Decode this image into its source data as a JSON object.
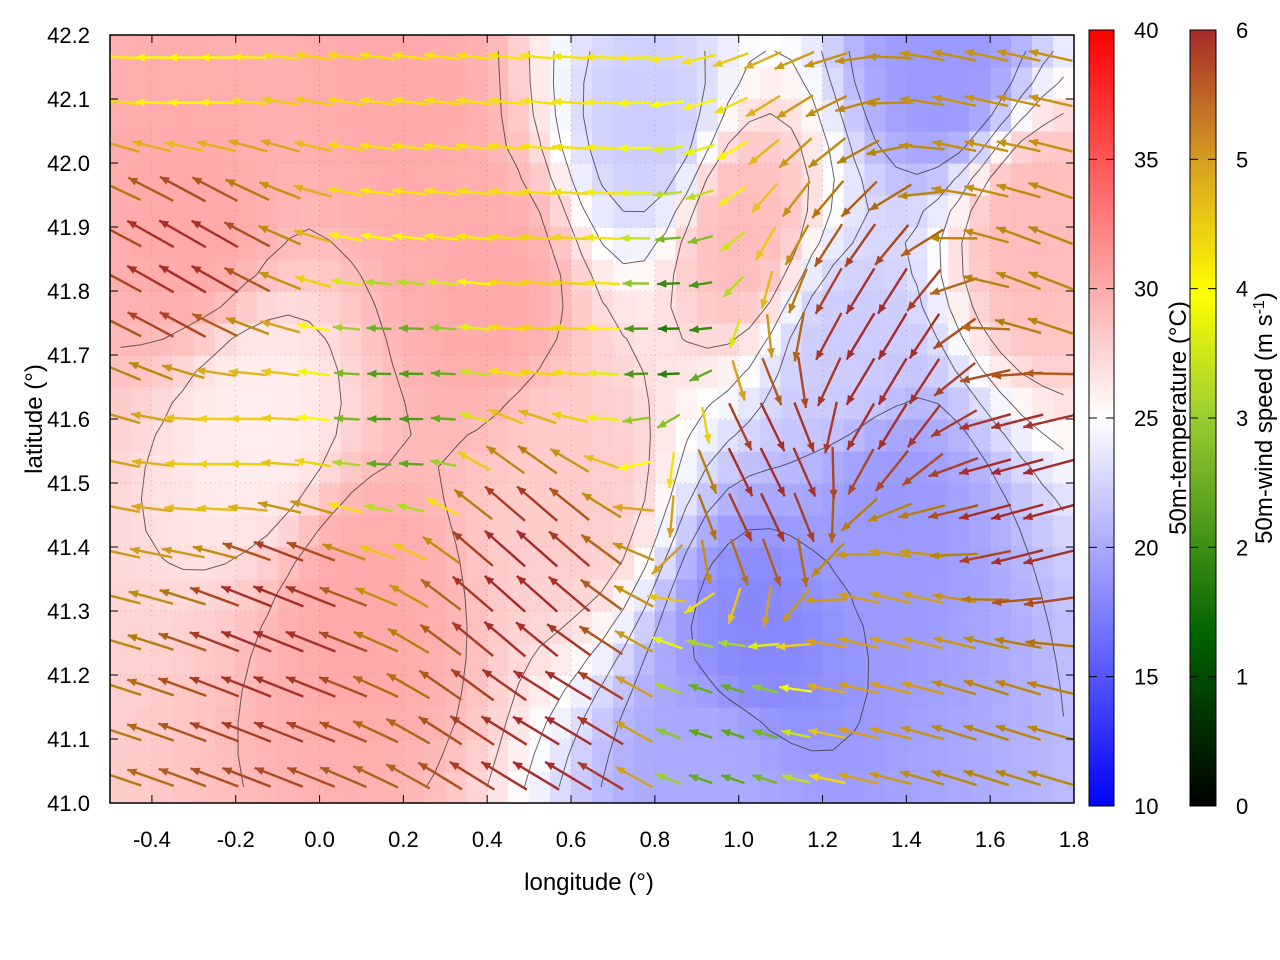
{
  "chart_data": {
    "type": "heatmap",
    "description_overlays": [
      "vector-field",
      "contour-lines"
    ],
    "xlabel": "longitude (°)",
    "ylabel": "latitude (°)",
    "xlim": [
      -0.5,
      1.8
    ],
    "ylim": [
      41.0,
      42.2
    ],
    "x_ticks": [
      "-0.4",
      "-0.2",
      "0.0",
      "0.2",
      "0.4",
      "0.6",
      "0.8",
      "1.0",
      "1.2",
      "1.4",
      "1.6",
      "1.8"
    ],
    "x_tick_values": [
      -0.4,
      -0.2,
      0.0,
      0.2,
      0.4,
      0.6,
      0.8,
      1.0,
      1.2,
      1.4,
      1.6,
      1.8
    ],
    "y_ticks": [
      "41.0",
      "41.1",
      "41.2",
      "41.3",
      "41.4",
      "41.5",
      "41.6",
      "41.7",
      "41.8",
      "41.9",
      "42.0",
      "42.1",
      "42.2"
    ],
    "y_tick_values": [
      41.0,
      41.1,
      41.2,
      41.3,
      41.4,
      41.5,
      41.6,
      41.7,
      41.8,
      41.9,
      42.0,
      42.1,
      42.2
    ],
    "grid": true,
    "temperature_colorbar": {
      "label": "50m-temperature (°C)",
      "range": [
        10,
        40
      ],
      "ticks": [
        "10",
        "15",
        "20",
        "25",
        "30",
        "35",
        "40"
      ],
      "tick_values": [
        10,
        15,
        20,
        25,
        30,
        35,
        40
      ],
      "colors": [
        "#0000ff",
        "#ffffff",
        "#ff0000"
      ],
      "neutral_value": 25
    },
    "wind_colorbar": {
      "label_main": "50m-wind speed (m s",
      "label_sup": "-1",
      "label_end": ")",
      "range": [
        0,
        6
      ],
      "ticks": [
        "0",
        "1",
        "2",
        "3",
        "4",
        "5",
        "6"
      ],
      "tick_values": [
        0,
        1,
        2,
        3,
        4,
        5,
        6
      ],
      "colors": [
        "#000000",
        "#006400",
        "#9acd32",
        "#ffff00",
        "#daa520",
        "#b8860b",
        "#a52a2a"
      ]
    },
    "temperature_features": [
      {
        "lon": 1.35,
        "lat": 41.45,
        "temp": 19
      },
      {
        "lon": 1.05,
        "lat": 41.25,
        "temp": 18
      },
      {
        "lon": 0.95,
        "lat": 41.05,
        "temp": 20
      },
      {
        "lon": 1.5,
        "lat": 42.15,
        "temp": 19
      },
      {
        "lon": 0.8,
        "lat": 42.05,
        "temp": 22
      },
      {
        "lon": 1.25,
        "lat": 41.7,
        "temp": 22
      },
      {
        "lon": -0.3,
        "lat": 41.9,
        "temp": 30
      },
      {
        "lon": 0.1,
        "lat": 41.3,
        "temp": 30
      },
      {
        "lon": 0.4,
        "lat": 41.8,
        "temp": 30
      },
      {
        "lon": 0.2,
        "lat": 42.1,
        "temp": 30
      },
      {
        "lon": 1.7,
        "lat": 41.9,
        "temp": 29
      },
      {
        "lon": -0.15,
        "lat": 41.6,
        "temp": 26
      },
      {
        "lon": 0.6,
        "lat": 41.5,
        "temp": 28
      },
      {
        "lon": 1.0,
        "lat": 41.9,
        "temp": 29
      }
    ],
    "wind_features": [
      {
        "lon": 0.85,
        "lat": 41.72,
        "u": -1.2,
        "v": 0.0,
        "speed": 1.2
      },
      {
        "lon": 0.2,
        "lat": 41.62,
        "u": -1.5,
        "v": 0.0,
        "speed": 1.5
      },
      {
        "lon": 0.6,
        "lat": 41.8,
        "u": -3.5,
        "v": 0.2,
        "speed": 3.5
      },
      {
        "lon": 0.3,
        "lat": 42.05,
        "u": -3.2,
        "v": 0.4,
        "speed": 3.3
      },
      {
        "lon": -0.3,
        "lat": 42.15,
        "u": -3.0,
        "v": 0.0,
        "speed": 3.0
      },
      {
        "lon": -0.3,
        "lat": 41.85,
        "u": -5.2,
        "v": 3.0,
        "speed": 6.0
      },
      {
        "lon": -0.1,
        "lat": 41.3,
        "u": -5.5,
        "v": 2.2,
        "speed": 6.0
      },
      {
        "lon": 0.5,
        "lat": 41.35,
        "u": -4.5,
        "v": 4.0,
        "speed": 6.0
      },
      {
        "lon": 0.6,
        "lat": 41.1,
        "u": -5.0,
        "v": 3.0,
        "speed": 6.0
      },
      {
        "lon": 1.35,
        "lat": 41.7,
        "u": -3.0,
        "v": -5.0,
        "speed": 6.0
      },
      {
        "lon": 1.7,
        "lat": 41.5,
        "u": -5.5,
        "v": -1.5,
        "speed": 6.0
      },
      {
        "lon": 1.05,
        "lat": 41.55,
        "u": 2.5,
        "v": -5.0,
        "speed": 6.0
      },
      {
        "lon": 1.4,
        "lat": 41.25,
        "u": -4.0,
        "v": 1.0,
        "speed": 4.2
      },
      {
        "lon": 1.6,
        "lat": 41.1,
        "u": -4.8,
        "v": 1.5,
        "speed": 5.0
      },
      {
        "lon": 1.65,
        "lat": 42.05,
        "u": -4.5,
        "v": 1.0,
        "speed": 4.6
      },
      {
        "lon": 1.75,
        "lat": 41.85,
        "u": -4.6,
        "v": 1.8,
        "speed": 5.0
      },
      {
        "lon": 0.95,
        "lat": 41.1,
        "u": -1.5,
        "v": 0.5,
        "speed": 1.6
      },
      {
        "lon": -0.2,
        "lat": 41.55,
        "u": -3.5,
        "v": 0.0,
        "speed": 3.5
      }
    ]
  }
}
